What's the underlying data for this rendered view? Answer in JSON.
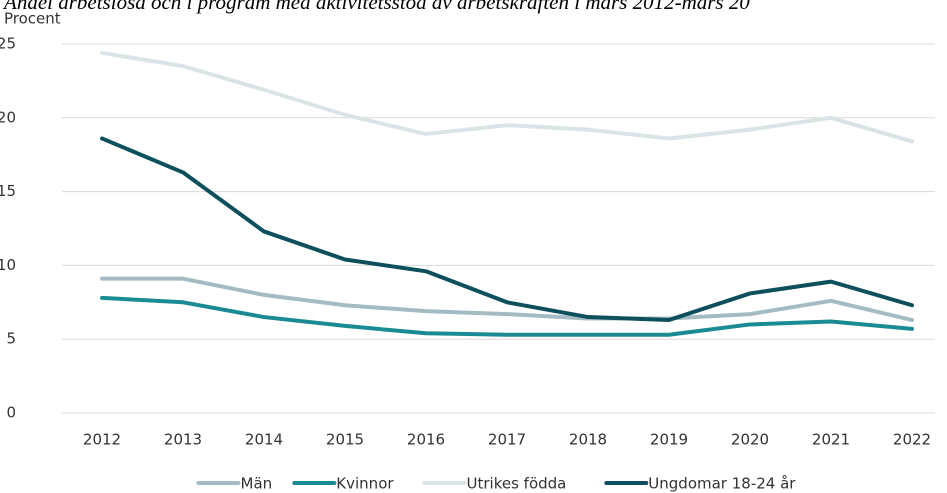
{
  "chart_data": {
    "type": "line",
    "title": "Andel arbetslösa och i program med aktivitetsstöd av arbetskraften i mars 2012-mars 20",
    "y_label": "Procent",
    "categories": [
      "2012",
      "2013",
      "2014",
      "2015",
      "2016",
      "2017",
      "2018",
      "2019",
      "2020",
      "2021",
      "2022"
    ],
    "series": [
      {
        "name": "Män",
        "color": "#a3bcc4",
        "values": [
          9.1,
          9.1,
          8.0,
          7.3,
          6.9,
          6.7,
          6.4,
          6.4,
          6.7,
          7.6,
          6.3
        ]
      },
      {
        "name": "Kvinnor",
        "color": "#1a8a94",
        "values": [
          7.8,
          7.5,
          6.5,
          5.9,
          5.4,
          5.3,
          5.3,
          5.3,
          6.0,
          6.2,
          5.7
        ]
      },
      {
        "name": "Utrikes födda",
        "color": "#d9e4e7",
        "values": [
          24.4,
          23.5,
          21.9,
          20.2,
          18.9,
          19.5,
          19.2,
          18.6,
          19.2,
          20.0,
          18.4
        ]
      },
      {
        "name": "Ungdomar 18-24 år",
        "color": "#0d4f5c",
        "values": [
          18.6,
          16.3,
          12.3,
          10.4,
          9.6,
          7.5,
          6.5,
          6.3,
          8.1,
          8.9,
          7.3
        ]
      }
    ],
    "ylim": [
      0,
      25
    ],
    "yticks": [
      0,
      5,
      10,
      15,
      20,
      25
    ],
    "grid": true,
    "legend": "bottom"
  }
}
